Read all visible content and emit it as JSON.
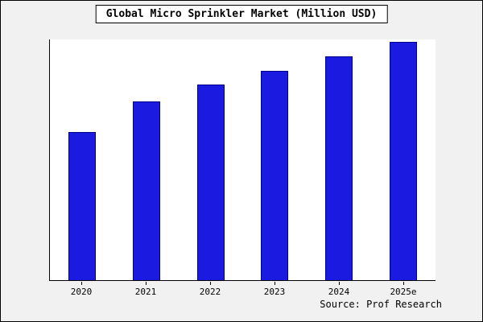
{
  "title": "Global Micro Sprinkler Market (Million USD)",
  "source_text": "Source: Prof Research",
  "colors": {
    "bar_fill": "#1a1ae0",
    "bar_border": "#00008b",
    "outer_background": "#f1f1f1",
    "plot_background": "#ffffff",
    "axis": "#000000"
  },
  "chart_data": {
    "type": "bar",
    "title": "Global Micro Sprinkler Market (Million USD)",
    "categories": [
      "2020",
      "2021",
      "2022",
      "2023",
      "2024",
      "2025e"
    ],
    "values": [
      62,
      75,
      82,
      88,
      94,
      100
    ],
    "xlabel": "",
    "ylabel": "",
    "ylim": [
      0,
      101
    ],
    "grid": false,
    "legend_position": "none"
  }
}
